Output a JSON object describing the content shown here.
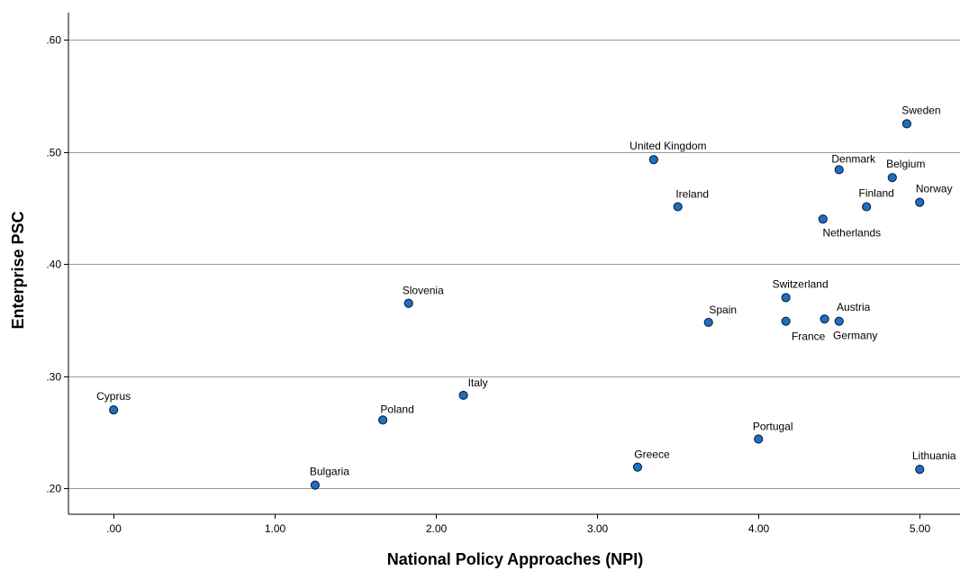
{
  "chart_data": {
    "type": "scatter",
    "xlabel": "National Policy Approaches (NPI)",
    "ylabel": "Enterprise PSC",
    "xlim": [
      -0.28,
      5.25
    ],
    "ylim": [
      0.177,
      0.624
    ],
    "x_ticks": [
      0,
      1,
      2,
      3,
      4,
      5
    ],
    "x_tick_labels": [
      ".00",
      "1.00",
      "2.00",
      "3.00",
      "4.00",
      "5.00"
    ],
    "y_ticks": [
      0.2,
      0.3,
      0.4,
      0.5,
      0.6
    ],
    "y_tick_labels": [
      ".20",
      ".30",
      ".40",
      ".50",
      ".60"
    ],
    "grid": "horizontal",
    "point_color": "#1f6fc1",
    "points": [
      {
        "label": "Cyprus",
        "x": 0.0,
        "y": 0.27
      },
      {
        "label": "Bulgaria",
        "x": 1.25,
        "y": 0.203
      },
      {
        "label": "Poland",
        "x": 1.67,
        "y": 0.261
      },
      {
        "label": "Slovenia",
        "x": 1.83,
        "y": 0.365
      },
      {
        "label": "Italy",
        "x": 2.17,
        "y": 0.283
      },
      {
        "label": "Greece",
        "x": 3.25,
        "y": 0.219
      },
      {
        "label": "United Kingdom",
        "x": 3.35,
        "y": 0.493
      },
      {
        "label": "Ireland",
        "x": 3.5,
        "y": 0.451
      },
      {
        "label": "Spain",
        "x": 3.69,
        "y": 0.348
      },
      {
        "label": "Portugal",
        "x": 4.0,
        "y": 0.244
      },
      {
        "label": "Switzerland",
        "x": 4.17,
        "y": 0.37
      },
      {
        "label": "France",
        "x": 4.17,
        "y": 0.349
      },
      {
        "label": "Netherlands",
        "x": 4.4,
        "y": 0.44
      },
      {
        "label": "Austria",
        "x": 4.41,
        "y": 0.351
      },
      {
        "label": "Germany",
        "x": 4.5,
        "y": 0.349
      },
      {
        "label": "Denmark",
        "x": 4.5,
        "y": 0.484
      },
      {
        "label": "Finland",
        "x": 4.67,
        "y": 0.451
      },
      {
        "label": "Belgium",
        "x": 4.83,
        "y": 0.477
      },
      {
        "label": "Sweden",
        "x": 4.92,
        "y": 0.525
      },
      {
        "label": "Norway",
        "x": 5.0,
        "y": 0.455
      },
      {
        "label": "Lithuania",
        "x": 5.0,
        "y": 0.217
      }
    ]
  }
}
